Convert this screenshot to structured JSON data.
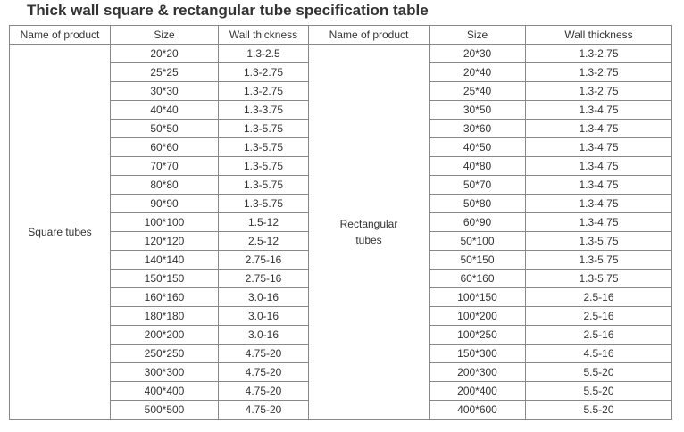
{
  "title": "Thick wall square & rectangular tube specification table",
  "table": {
    "header": [
      "Name of product",
      "Size",
      "Wall thickness",
      "Name of product",
      "Size",
      "Wall thickness"
    ],
    "groups": [
      {
        "name": "Square tubes",
        "rows": [
          [
            "20*20",
            "1.3-2.5"
          ],
          [
            "25*25",
            "1.3-2.75"
          ],
          [
            "30*30",
            "1.3-2.75"
          ],
          [
            "40*40",
            "1.3-3.75"
          ],
          [
            "50*50",
            "1.3-5.75"
          ],
          [
            "60*60",
            "1.3-5.75"
          ],
          [
            "70*70",
            "1.3-5.75"
          ],
          [
            "80*80",
            "1.3-5.75"
          ],
          [
            "90*90",
            "1.3-5.75"
          ],
          [
            "100*100",
            "1.5-12"
          ],
          [
            "120*120",
            "2.5-12"
          ],
          [
            "140*140",
            "2.75-16"
          ],
          [
            "150*150",
            "2.75-16"
          ],
          [
            "160*160",
            "3.0-16"
          ],
          [
            "180*180",
            "3.0-16"
          ],
          [
            "200*200",
            "3.0-16"
          ],
          [
            "250*250",
            "4.75-20"
          ],
          [
            "300*300",
            "4.75-20"
          ],
          [
            "400*400",
            "4.75-20"
          ],
          [
            "500*500",
            "4.75-20"
          ]
        ]
      },
      {
        "name": "Rectangular tubes",
        "rows": [
          [
            "20*30",
            "1.3-2.75"
          ],
          [
            "20*40",
            "1.3-2.75"
          ],
          [
            "25*40",
            "1.3-2.75"
          ],
          [
            "30*50",
            "1.3-4.75"
          ],
          [
            "30*60",
            "1.3-4.75"
          ],
          [
            "40*50",
            "1.3-4.75"
          ],
          [
            "40*80",
            "1.3-4.75"
          ],
          [
            "50*70",
            "1.3-4.75"
          ],
          [
            "50*80",
            "1.3-4.75"
          ],
          [
            "60*90",
            "1.3-4.75"
          ],
          [
            "50*100",
            "1.3-5.75"
          ],
          [
            "50*150",
            "1.3-5.75"
          ],
          [
            "60*160",
            "1.3-5.75"
          ],
          [
            "100*150",
            "2.5-16"
          ],
          [
            "100*200",
            "2.5-16"
          ],
          [
            "100*250",
            "2.5-16"
          ],
          [
            "150*300",
            "4.5-16"
          ],
          [
            "200*300",
            "5.5-20"
          ],
          [
            "200*400",
            "5.5-20"
          ],
          [
            "400*600",
            "5.5-20"
          ]
        ]
      }
    ]
  }
}
